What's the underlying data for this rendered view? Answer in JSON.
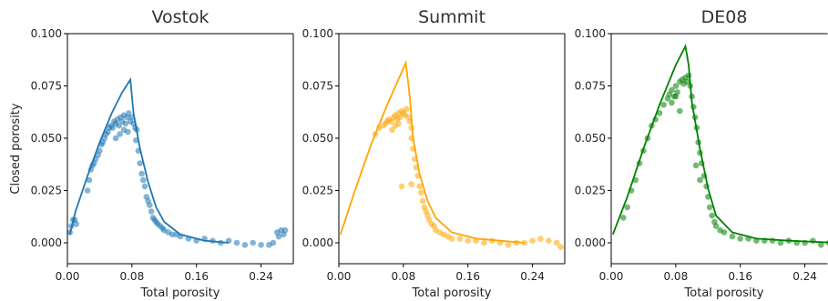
{
  "chart_data": [
    {
      "type": "scatter",
      "title": "Vostok",
      "xlabel": "Total porosity",
      "ylabel": "Closed porosity",
      "xlim": [
        0.0,
        0.28
      ],
      "ylim": [
        -0.01,
        0.1
      ],
      "xticks": [
        "0.00",
        "0.08",
        "0.16",
        "0.24"
      ],
      "yticks": [
        "0.000",
        "0.025",
        "0.050",
        "0.075",
        "0.100"
      ],
      "color": "#1f77b4",
      "line": {
        "x": [
          0.003,
          0.01,
          0.025,
          0.04,
          0.055,
          0.068,
          0.078,
          0.082,
          0.09,
          0.1,
          0.11,
          0.12,
          0.14,
          0.17,
          0.2
        ],
        "y": [
          0.004,
          0.015,
          0.032,
          0.048,
          0.062,
          0.072,
          0.078,
          0.062,
          0.045,
          0.029,
          0.017,
          0.01,
          0.004,
          0.001,
          0.0
        ]
      },
      "points": {
        "x": [
          0.003,
          0.005,
          0.007,
          0.009,
          0.011,
          0.025,
          0.027,
          0.029,
          0.031,
          0.033,
          0.035,
          0.038,
          0.04,
          0.042,
          0.044,
          0.046,
          0.048,
          0.05,
          0.052,
          0.054,
          0.056,
          0.058,
          0.06,
          0.062,
          0.064,
          0.066,
          0.068,
          0.07,
          0.072,
          0.074,
          0.076,
          0.078,
          0.08,
          0.082,
          0.084,
          0.086,
          0.06,
          0.065,
          0.07,
          0.075,
          0.085,
          0.088,
          0.09,
          0.092,
          0.094,
          0.096,
          0.098,
          0.1,
          0.102,
          0.104,
          0.106,
          0.108,
          0.11,
          0.112,
          0.115,
          0.118,
          0.12,
          0.125,
          0.13,
          0.135,
          0.14,
          0.15,
          0.16,
          0.17,
          0.18,
          0.19,
          0.2,
          0.21,
          0.22,
          0.23,
          0.24,
          0.25,
          0.255,
          0.26,
          0.265,
          0.27,
          0.262,
          0.268
        ],
        "y": [
          0.005,
          0.008,
          0.011,
          0.011,
          0.009,
          0.025,
          0.03,
          0.035,
          0.037,
          0.038,
          0.04,
          0.042,
          0.044,
          0.047,
          0.048,
          0.05,
          0.052,
          0.053,
          0.055,
          0.056,
          0.055,
          0.058,
          0.057,
          0.059,
          0.056,
          0.06,
          0.058,
          0.061,
          0.057,
          0.06,
          0.062,
          0.058,
          0.06,
          0.057,
          0.055,
          0.054,
          0.05,
          0.052,
          0.054,
          0.053,
          0.049,
          0.044,
          0.038,
          0.033,
          0.03,
          0.027,
          0.022,
          0.02,
          0.018,
          0.015,
          0.012,
          0.011,
          0.01,
          0.009,
          0.008,
          0.007,
          0.006,
          0.005,
          0.004,
          0.004,
          0.003,
          0.002,
          0.001,
          0.002,
          0.001,
          0.0,
          0.001,
          0.0,
          -0.001,
          0.0,
          -0.001,
          -0.001,
          0.0,
          0.005,
          0.006,
          0.006,
          0.003,
          0.004
        ]
      }
    },
    {
      "type": "scatter",
      "title": "Summit",
      "xlabel": "Total porosity",
      "ylabel": "",
      "xlim": [
        0.0,
        0.28
      ],
      "ylim": [
        -0.01,
        0.1
      ],
      "xticks": [
        "0.00",
        "0.08",
        "0.16",
        "0.24"
      ],
      "yticks": [
        "0.000",
        "0.025",
        "0.050",
        "0.075",
        "0.100"
      ],
      "color": "#ffa500",
      "line": {
        "x": [
          0.002,
          0.02,
          0.04,
          0.06,
          0.075,
          0.083,
          0.088,
          0.092,
          0.1,
          0.11,
          0.12,
          0.14,
          0.17,
          0.2,
          0.23
        ],
        "y": [
          0.004,
          0.025,
          0.047,
          0.066,
          0.079,
          0.086,
          0.07,
          0.05,
          0.033,
          0.02,
          0.012,
          0.005,
          0.002,
          0.001,
          0.0
        ]
      },
      "points": {
        "x": [
          0.045,
          0.05,
          0.055,
          0.058,
          0.06,
          0.062,
          0.065,
          0.068,
          0.07,
          0.072,
          0.074,
          0.076,
          0.078,
          0.08,
          0.082,
          0.084,
          0.086,
          0.088,
          0.09,
          0.066,
          0.07,
          0.074,
          0.09,
          0.092,
          0.094,
          0.096,
          0.098,
          0.1,
          0.102,
          0.104,
          0.106,
          0.108,
          0.11,
          0.112,
          0.115,
          0.118,
          0.12,
          0.125,
          0.13,
          0.135,
          0.14,
          0.15,
          0.16,
          0.17,
          0.18,
          0.19,
          0.2,
          0.21,
          0.22,
          0.23,
          0.24,
          0.25,
          0.26,
          0.27,
          0.275,
          0.078,
          0.09
        ],
        "y": [
          0.052,
          0.055,
          0.056,
          0.057,
          0.058,
          0.059,
          0.058,
          0.06,
          0.061,
          0.059,
          0.062,
          0.06,
          0.063,
          0.062,
          0.061,
          0.064,
          0.06,
          0.058,
          0.055,
          0.054,
          0.056,
          0.057,
          0.05,
          0.045,
          0.04,
          0.036,
          0.032,
          0.027,
          0.024,
          0.02,
          0.017,
          0.015,
          0.013,
          0.011,
          0.009,
          0.008,
          0.006,
          0.005,
          0.004,
          0.003,
          0.002,
          0.002,
          0.001,
          0.001,
          0.0,
          0.001,
          0.0,
          -0.001,
          0.0,
          0.0,
          0.001,
          0.002,
          0.001,
          0.0,
          -0.002,
          0.027,
          0.028
        ]
      }
    },
    {
      "type": "scatter",
      "title": "DE08",
      "xlabel": "Total porosity",
      "ylabel": "",
      "xlim": [
        0.0,
        0.28
      ],
      "ylim": [
        -0.01,
        0.1
      ],
      "xticks": [
        "0.00",
        "0.08",
        "0.16",
        "0.24"
      ],
      "yticks": [
        "0.000",
        "0.025",
        "0.050",
        "0.075",
        "0.100"
      ],
      "color": "#008000",
      "line": {
        "x": [
          0.002,
          0.02,
          0.04,
          0.06,
          0.08,
          0.092,
          0.096,
          0.1,
          0.11,
          0.12,
          0.13,
          0.15,
          0.18,
          0.22,
          0.28
        ],
        "y": [
          0.004,
          0.022,
          0.045,
          0.066,
          0.085,
          0.094,
          0.085,
          0.067,
          0.045,
          0.026,
          0.013,
          0.005,
          0.002,
          0.001,
          0.0
        ]
      },
      "points": {
        "x": [
          0.015,
          0.02,
          0.025,
          0.03,
          0.035,
          0.04,
          0.045,
          0.05,
          0.055,
          0.06,
          0.065,
          0.07,
          0.072,
          0.075,
          0.078,
          0.08,
          0.082,
          0.085,
          0.088,
          0.09,
          0.092,
          0.094,
          0.096,
          0.098,
          0.075,
          0.08,
          0.085,
          0.1,
          0.102,
          0.104,
          0.106,
          0.108,
          0.11,
          0.112,
          0.115,
          0.118,
          0.12,
          0.122,
          0.125,
          0.128,
          0.13,
          0.135,
          0.14,
          0.15,
          0.16,
          0.17,
          0.18,
          0.19,
          0.2,
          0.21,
          0.22,
          0.23,
          0.24,
          0.25,
          0.26,
          0.27,
          0.28,
          0.105,
          0.11
        ],
        "y": [
          0.012,
          0.017,
          0.025,
          0.03,
          0.038,
          0.044,
          0.05,
          0.056,
          0.059,
          0.062,
          0.066,
          0.069,
          0.071,
          0.073,
          0.07,
          0.075,
          0.072,
          0.077,
          0.078,
          0.076,
          0.079,
          0.077,
          0.08,
          0.075,
          0.067,
          0.07,
          0.063,
          0.07,
          0.065,
          0.06,
          0.055,
          0.048,
          0.043,
          0.038,
          0.032,
          0.027,
          0.022,
          0.017,
          0.013,
          0.01,
          0.008,
          0.006,
          0.005,
          0.003,
          0.002,
          0.002,
          0.001,
          0.001,
          0.001,
          0.0,
          0.001,
          0.0,
          0.0,
          0.001,
          -0.001,
          0.0,
          0.001,
          0.037,
          0.03
        ]
      }
    }
  ]
}
